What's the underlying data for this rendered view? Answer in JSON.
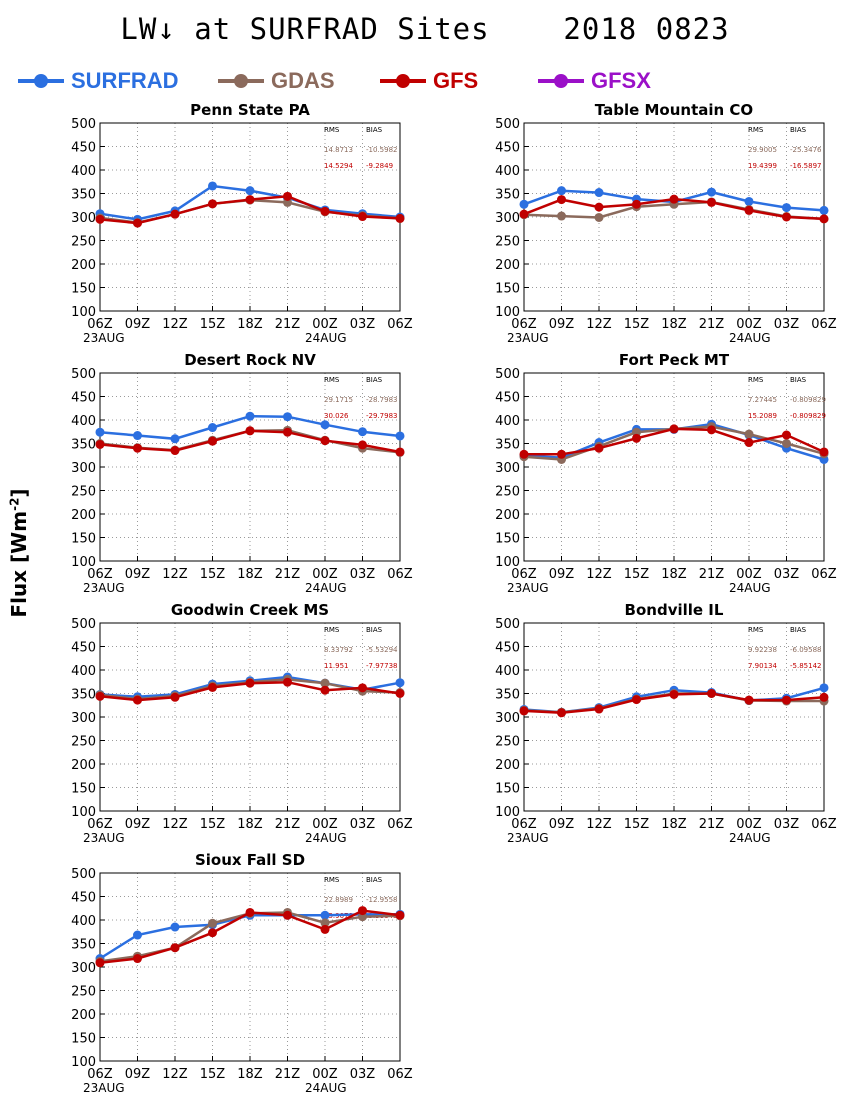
{
  "header": {
    "title": "LW↓ at SURFRAD Sites    2018 0823",
    "ylabel_main": "Flux [Wm",
    "ylabel_sup": "-2",
    "ylabel_end": "]"
  },
  "legend": [
    {
      "name": "SURFRAD",
      "color": "#2b6fe0"
    },
    {
      "name": "GDAS",
      "color": "#8b6a5c"
    },
    {
      "name": "GFS",
      "color": "#c00000"
    },
    {
      "name": "GFSX",
      "color": "#9b10c8"
    }
  ],
  "chart_data": [
    {
      "type": "line",
      "title": "Penn State PA",
      "x": [
        "06Z",
        "09Z",
        "12Z",
        "15Z",
        "18Z",
        "21Z",
        "00Z",
        "03Z",
        "06Z"
      ],
      "date_labels": [
        "23AUG",
        "24AUG"
      ],
      "ylim": [
        100,
        500
      ],
      "yticks": [
        100,
        150,
        200,
        250,
        300,
        350,
        400,
        450,
        500
      ],
      "grid": true,
      "stats_header": [
        "RMS",
        "BIAS"
      ],
      "stats": [
        {
          "series": "GDAS",
          "rms": "14.8713",
          "bias": "-10.5982"
        },
        {
          "series": "GFS",
          "rms": "14.5294",
          "bias": "-9.2849"
        }
      ],
      "series": [
        {
          "name": "SURFRAD",
          "values": [
            307,
            295,
            313,
            366,
            356,
            341,
            315,
            307,
            300
          ]
        },
        {
          "name": "GDAS",
          "values": [
            298,
            288,
            306,
            328,
            336,
            331,
            311,
            303,
            297
          ]
        },
        {
          "name": "GFS",
          "values": [
            295,
            287,
            306,
            328,
            337,
            344,
            312,
            301,
            297
          ]
        }
      ]
    },
    {
      "type": "line",
      "title": "Table Mountain CO",
      "x": [
        "06Z",
        "09Z",
        "12Z",
        "15Z",
        "18Z",
        "21Z",
        "00Z",
        "03Z",
        "06Z"
      ],
      "date_labels": [
        "23AUG",
        "24AUG"
      ],
      "ylim": [
        100,
        500
      ],
      "yticks": [
        100,
        150,
        200,
        250,
        300,
        350,
        400,
        450,
        500
      ],
      "grid": true,
      "stats_header": [
        "RMS",
        "BIAS"
      ],
      "stats": [
        {
          "series": "GDAS",
          "rms": "29.9005",
          "bias": "-25.3476"
        },
        {
          "series": "GFS",
          "rms": "19.4399",
          "bias": "-16.5897"
        }
      ],
      "series": [
        {
          "name": "SURFRAD",
          "values": [
            327,
            356,
            352,
            338,
            332,
            353,
            333,
            320,
            314
          ]
        },
        {
          "name": "GDAS",
          "values": [
            305,
            302,
            299,
            322,
            327,
            332,
            316,
            301,
            296
          ]
        },
        {
          "name": "GFS",
          "values": [
            306,
            337,
            321,
            327,
            338,
            331,
            314,
            300,
            296
          ]
        }
      ]
    },
    {
      "type": "line",
      "title": "Desert Rock NV",
      "x": [
        "06Z",
        "09Z",
        "12Z",
        "15Z",
        "18Z",
        "21Z",
        "00Z",
        "03Z",
        "06Z"
      ],
      "date_labels": [
        "23AUG",
        "24AUG"
      ],
      "ylim": [
        100,
        500
      ],
      "yticks": [
        100,
        150,
        200,
        250,
        300,
        350,
        400,
        450,
        500
      ],
      "grid": true,
      "stats_header": [
        "RMS",
        "BIAS"
      ],
      "stats": [
        {
          "series": "GDAS",
          "rms": "29.1715",
          "bias": "-28.7983"
        },
        {
          "series": "GFS",
          "rms": "30.026",
          "bias": "-29.7983"
        }
      ],
      "series": [
        {
          "name": "SURFRAD",
          "values": [
            374,
            367,
            360,
            384,
            408,
            407,
            390,
            375,
            366
          ]
        },
        {
          "name": "GDAS",
          "values": [
            350,
            341,
            336,
            357,
            377,
            378,
            357,
            340,
            331
          ]
        },
        {
          "name": "GFS",
          "values": [
            348,
            340,
            335,
            355,
            377,
            374,
            356,
            347,
            332
          ]
        }
      ]
    },
    {
      "type": "line",
      "title": "Fort Peck MT",
      "x": [
        "06Z",
        "09Z",
        "12Z",
        "15Z",
        "18Z",
        "21Z",
        "00Z",
        "03Z",
        "06Z"
      ],
      "date_labels": [
        "23AUG",
        "24AUG"
      ],
      "ylim": [
        100,
        500
      ],
      "yticks": [
        100,
        150,
        200,
        250,
        300,
        350,
        400,
        450,
        500
      ],
      "grid": true,
      "stats_header": [
        "RMS",
        "BIAS"
      ],
      "stats": [
        {
          "series": "GDAS",
          "rms": "7.27445",
          "bias": "-0.809829"
        },
        {
          "series": "GFS",
          "rms": "15.2089",
          "bias": "-0.809829"
        }
      ],
      "series": [
        {
          "name": "SURFRAD",
          "values": [
            324,
            320,
            352,
            380,
            380,
            391,
            368,
            340,
            316
          ]
        },
        {
          "name": "GDAS",
          "values": [
            322,
            316,
            344,
            374,
            381,
            386,
            370,
            350,
            328
          ]
        },
        {
          "name": "GFS",
          "values": [
            327,
            327,
            340,
            361,
            381,
            379,
            352,
            368,
            332
          ]
        }
      ]
    },
    {
      "type": "line",
      "title": "Goodwin Creek MS",
      "x": [
        "06Z",
        "09Z",
        "12Z",
        "15Z",
        "18Z",
        "21Z",
        "00Z",
        "03Z",
        "06Z"
      ],
      "date_labels": [
        "23AUG",
        "24AUG"
      ],
      "ylim": [
        100,
        500
      ],
      "yticks": [
        100,
        150,
        200,
        250,
        300,
        350,
        400,
        450,
        500
      ],
      "grid": true,
      "stats_header": [
        "RMS",
        "BIAS"
      ],
      "stats": [
        {
          "series": "GDAS",
          "rms": "8.33792",
          "bias": "-5.53294"
        },
        {
          "series": "GFS",
          "rms": "11.951",
          "bias": "-7.97738"
        }
      ],
      "series": [
        {
          "name": "SURFRAD",
          "values": [
            348,
            343,
            348,
            370,
            377,
            385,
            372,
            358,
            373
          ]
        },
        {
          "name": "GDAS",
          "values": [
            347,
            338,
            345,
            366,
            374,
            380,
            372,
            355,
            352
          ]
        },
        {
          "name": "GFS",
          "values": [
            344,
            336,
            342,
            363,
            372,
            374,
            357,
            362,
            350
          ]
        }
      ]
    },
    {
      "type": "line",
      "title": "Bondville IL",
      "x": [
        "06Z",
        "09Z",
        "12Z",
        "15Z",
        "18Z",
        "21Z",
        "00Z",
        "03Z",
        "06Z"
      ],
      "date_labels": [
        "23AUG",
        "24AUG"
      ],
      "ylim": [
        100,
        500
      ],
      "yticks": [
        100,
        150,
        200,
        250,
        300,
        350,
        400,
        450,
        500
      ],
      "grid": true,
      "stats_header": [
        "RMS",
        "BIAS"
      ],
      "stats": [
        {
          "series": "GDAS",
          "rms": "9.92238",
          "bias": "-6.09588"
        },
        {
          "series": "GFS",
          "rms": "7.90134",
          "bias": "-5.85142"
        }
      ],
      "series": [
        {
          "name": "SURFRAD",
          "values": [
            316,
            310,
            320,
            343,
            357,
            352,
            335,
            340,
            362
          ]
        },
        {
          "name": "GDAS",
          "values": [
            314,
            310,
            318,
            338,
            350,
            350,
            335,
            334,
            334
          ]
        },
        {
          "name": "GFS",
          "values": [
            313,
            309,
            317,
            337,
            348,
            350,
            336,
            336,
            342
          ]
        }
      ]
    },
    {
      "type": "line",
      "title": "Sioux Fall SD",
      "x": [
        "06Z",
        "09Z",
        "12Z",
        "15Z",
        "18Z",
        "21Z",
        "00Z",
        "03Z",
        "06Z"
      ],
      "date_labels": [
        "23AUG",
        "24AUG"
      ],
      "ylim": [
        100,
        500
      ],
      "yticks": [
        100,
        150,
        200,
        250,
        300,
        350,
        400,
        450,
        500
      ],
      "grid": true,
      "stats_header": [
        "RMS",
        "BIAS"
      ],
      "stats": [
        {
          "series": "GDAS",
          "rms": "22.8989",
          "bias": "-12.9558"
        },
        {
          "series": "GFS",
          "rms": "25.9078",
          "bias": "-9.38843"
        }
      ],
      "series": [
        {
          "name": "SURFRAD",
          "values": [
            318,
            368,
            385,
            390,
            410,
            410,
            410,
            412,
            412
          ]
        },
        {
          "name": "GDAS",
          "values": [
            312,
            323,
            341,
            393,
            414,
            416,
            394,
            407,
            409
          ]
        },
        {
          "name": "GFS",
          "values": [
            309,
            318,
            341,
            373,
            416,
            410,
            380,
            420,
            410
          ]
        }
      ]
    }
  ]
}
